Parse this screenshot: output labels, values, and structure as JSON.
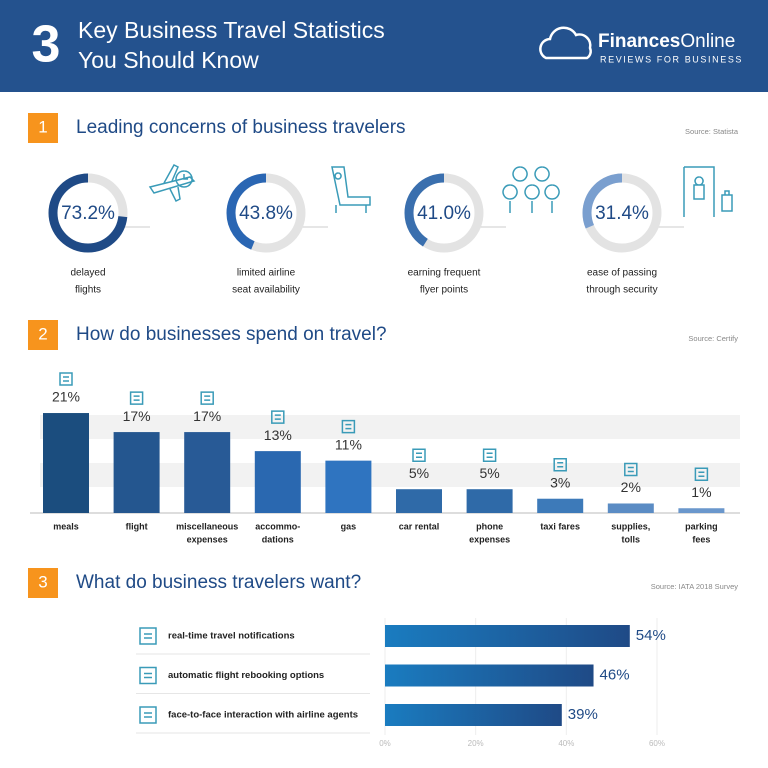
{
  "header": {
    "number": "3",
    "title_lines": [
      "Key Business Travel Statistics",
      "You Should Know"
    ]
  },
  "brand": {
    "name_bold": "Finances",
    "name_light": "Online",
    "tagline": "REVIEWS FOR BUSINESS"
  },
  "chart_data": [
    {
      "type": "donut",
      "section": "1",
      "title": "Leading concerns of business travelers",
      "source": "Source: Statista",
      "categories": [
        [
          "delayed",
          "flights"
        ],
        [
          "limited airline",
          "seat availability"
        ],
        [
          "earning frequent",
          "flyer points"
        ],
        [
          "ease of passing",
          "through security"
        ]
      ],
      "values": [
        73.2,
        43.8,
        41.0,
        31.4
      ],
      "value_labels": [
        "73.2%",
        "43.8%",
        "41.0%",
        "31.4%"
      ],
      "colors": [
        "#1f4a86",
        "#2a66b3",
        "#3a6fae",
        "#7a9fcf"
      ],
      "ylim": [
        0,
        100
      ]
    },
    {
      "type": "bar",
      "section": "2",
      "title": "How do businesses spend on travel?",
      "source": "Source: Certify",
      "categories": [
        [
          "meals"
        ],
        [
          "flight"
        ],
        [
          "miscellaneous",
          "expenses"
        ],
        [
          "accommo-",
          "dations"
        ],
        [
          "gas"
        ],
        [
          "car rental"
        ],
        [
          "phone",
          "expenses"
        ],
        [
          "taxi fares"
        ],
        [
          "supplies,",
          "tolls"
        ],
        [
          "parking",
          "fees"
        ]
      ],
      "values": [
        21,
        17,
        17,
        13,
        11,
        5,
        5,
        3,
        2,
        1
      ],
      "value_labels": [
        "21%",
        "17%",
        "17%",
        "13%",
        "11%",
        "5%",
        "5%",
        "3%",
        "2%",
        "1%"
      ],
      "colors": [
        "#1b4d7e",
        "#24568f",
        "#285a96",
        "#2a68b0",
        "#2f74c0",
        "#2f6aa8",
        "#2f6aa8",
        "#3d7ab9",
        "#5b8cc4",
        "#6a97cc"
      ]
    },
    {
      "type": "hbar",
      "section": "3",
      "title": "What do business travelers want?",
      "source": "Source: IATA 2018 Survey",
      "categories": [
        "real-time travel notifications",
        "automatic flight rebooking options",
        "face-to-face interaction with airline agents"
      ],
      "values": [
        54,
        46,
        39
      ],
      "value_labels": [
        "54%",
        "46%",
        "39%"
      ],
      "color": "#1f5c9e",
      "xlim": [
        0,
        60
      ],
      "xticks": [
        {
          "value": 0,
          "label": "0%"
        },
        {
          "value": 20,
          "label": "20%"
        },
        {
          "value": 40,
          "label": "40%"
        },
        {
          "value": 60,
          "label": "60%"
        }
      ],
      "grid": true
    }
  ]
}
